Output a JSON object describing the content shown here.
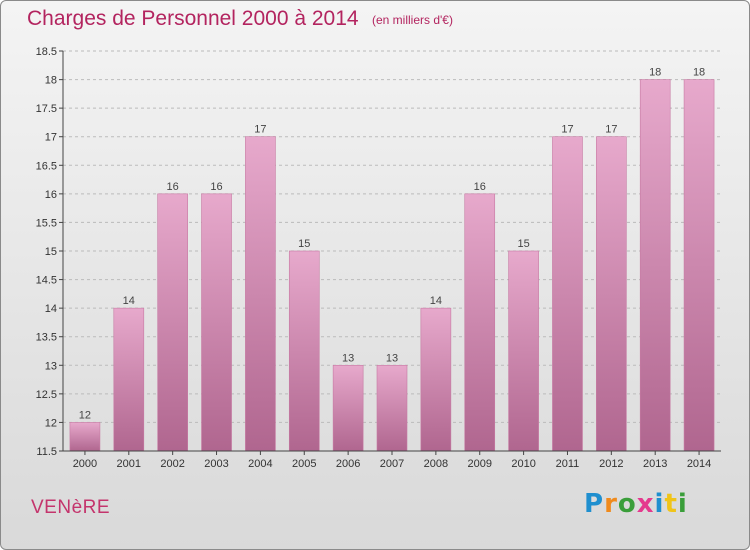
{
  "header": {
    "title": "Charges de Personnel 2000 à 2014",
    "subtitle": "(en milliers d'€)"
  },
  "footer": {
    "commune": "VENèRE",
    "logo_text": "Proxiti",
    "logo_colors": [
      "#1f8fcf",
      "#f08a1c",
      "#3a9e3a",
      "#e43a8e",
      "#1f8fcf",
      "#f0c419",
      "#3a9e3a"
    ]
  },
  "colors": {
    "bar_top": "#e7a9cc",
    "bar_bottom": "#b0668f",
    "bar_edge": "#c77aa3",
    "axis": "#444444",
    "grid": "#bbbbbb",
    "title": "#b3245f"
  },
  "chart_data": {
    "type": "bar",
    "title": "Charges de Personnel 2000 à 2014",
    "subtitle": "(en milliers d'€)",
    "xlabel": "",
    "ylabel": "",
    "categories": [
      "2000",
      "2001",
      "2002",
      "2003",
      "2004",
      "2005",
      "2006",
      "2007",
      "2008",
      "2009",
      "2010",
      "2011",
      "2012",
      "2013",
      "2014"
    ],
    "values": [
      12,
      14,
      16,
      16,
      17,
      15,
      13,
      13,
      14,
      16,
      15,
      17,
      17,
      18,
      18
    ],
    "data_labels": [
      "12",
      "14",
      "16",
      "16",
      "17",
      "15",
      "13",
      "13",
      "14",
      "16",
      "15",
      "17",
      "17",
      "18",
      "18"
    ],
    "ylim": [
      11.5,
      18.5
    ],
    "yticks": [
      11.5,
      12,
      12.5,
      13,
      13.5,
      14,
      14.5,
      15,
      15.5,
      16,
      16.5,
      17,
      17.5,
      18,
      18.5
    ],
    "ytick_labels": [
      "11.5",
      "12",
      "12.5",
      "13",
      "13.5",
      "14",
      "14.5",
      "15",
      "15.5",
      "16",
      "16.5",
      "17",
      "17.5",
      "18",
      "18.5"
    ],
    "grid": true,
    "legend": false
  }
}
